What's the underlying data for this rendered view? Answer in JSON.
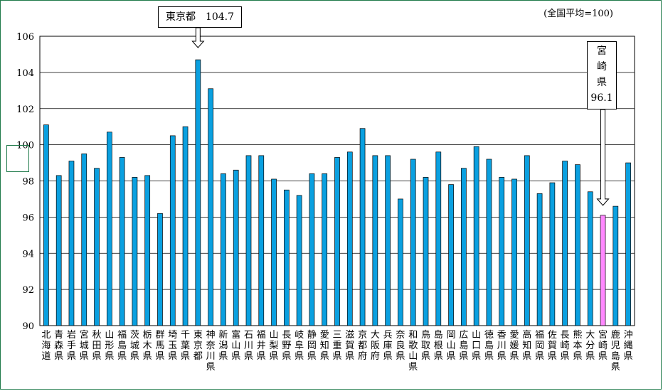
{
  "note": "(全国平均=100)",
  "callouts": {
    "tokyo": "東京都　104.7",
    "miyazaki": [
      "宮",
      "崎",
      "県",
      "96.1"
    ]
  },
  "colors": {
    "bar": "#0aa0e0",
    "highlight": "#ff88ff",
    "grid": "#000000"
  },
  "chart_data": {
    "type": "bar",
    "title": "",
    "xlabel": "",
    "ylabel": "",
    "ylim": [
      90,
      106
    ],
    "yticks": [
      90,
      92,
      94,
      96,
      98,
      100,
      102,
      104,
      106
    ],
    "grid": true,
    "highlight_category": "宮崎県",
    "categories": [
      "北海道",
      "青森県",
      "岩手県",
      "宮城県",
      "秋田県",
      "山形県",
      "福島県",
      "茨城県",
      "栃木県",
      "群馬県",
      "埼玉県",
      "千葉県",
      "東京都",
      "神奈川県",
      "新潟県",
      "富山県",
      "石川県",
      "福井県",
      "山梨県",
      "長野県",
      "岐阜県",
      "静岡県",
      "愛知県",
      "三重県",
      "滋賀県",
      "京都府",
      "大阪府",
      "兵庫県",
      "奈良県",
      "和歌山県",
      "鳥取県",
      "島根県",
      "岡山県",
      "広島県",
      "山口県",
      "徳島県",
      "香川県",
      "愛媛県",
      "高知県",
      "福岡県",
      "佐賀県",
      "長崎県",
      "熊本県",
      "大分県",
      "宮崎県",
      "鹿児島県",
      "沖縄県"
    ],
    "values": [
      101.1,
      98.3,
      99.1,
      99.5,
      98.7,
      100.7,
      99.3,
      98.2,
      98.3,
      96.2,
      100.5,
      101.0,
      104.7,
      103.1,
      98.4,
      98.6,
      99.4,
      99.4,
      98.1,
      97.5,
      97.2,
      98.4,
      98.4,
      99.3,
      99.6,
      100.9,
      99.4,
      99.4,
      97.0,
      99.2,
      98.2,
      99.6,
      97.8,
      98.7,
      99.9,
      99.2,
      98.2,
      98.1,
      99.4,
      97.3,
      97.9,
      99.1,
      98.9,
      97.4,
      96.1,
      96.6,
      99.0
    ]
  }
}
